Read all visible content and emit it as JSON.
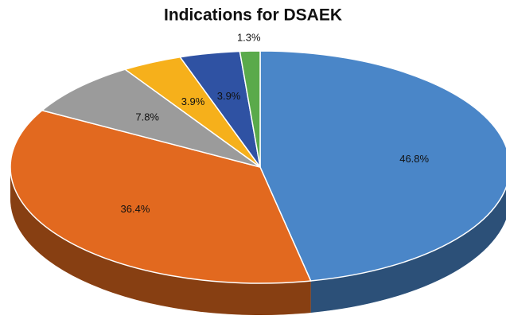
{
  "chart_data": {
    "type": "pie",
    "title": "Indications for DSAEK",
    "values": [
      46.8,
      36.4,
      7.8,
      3.9,
      3.9,
      1.3
    ],
    "value_labels": [
      "46.8%",
      "36.4%",
      "7.8%",
      "3.9%",
      "3.9%",
      "1.3%"
    ],
    "colors": [
      "#4a86c8",
      "#e2691f",
      "#9b9b9b",
      "#f6b01b",
      "#2f52a3",
      "#5aaa4b"
    ]
  }
}
